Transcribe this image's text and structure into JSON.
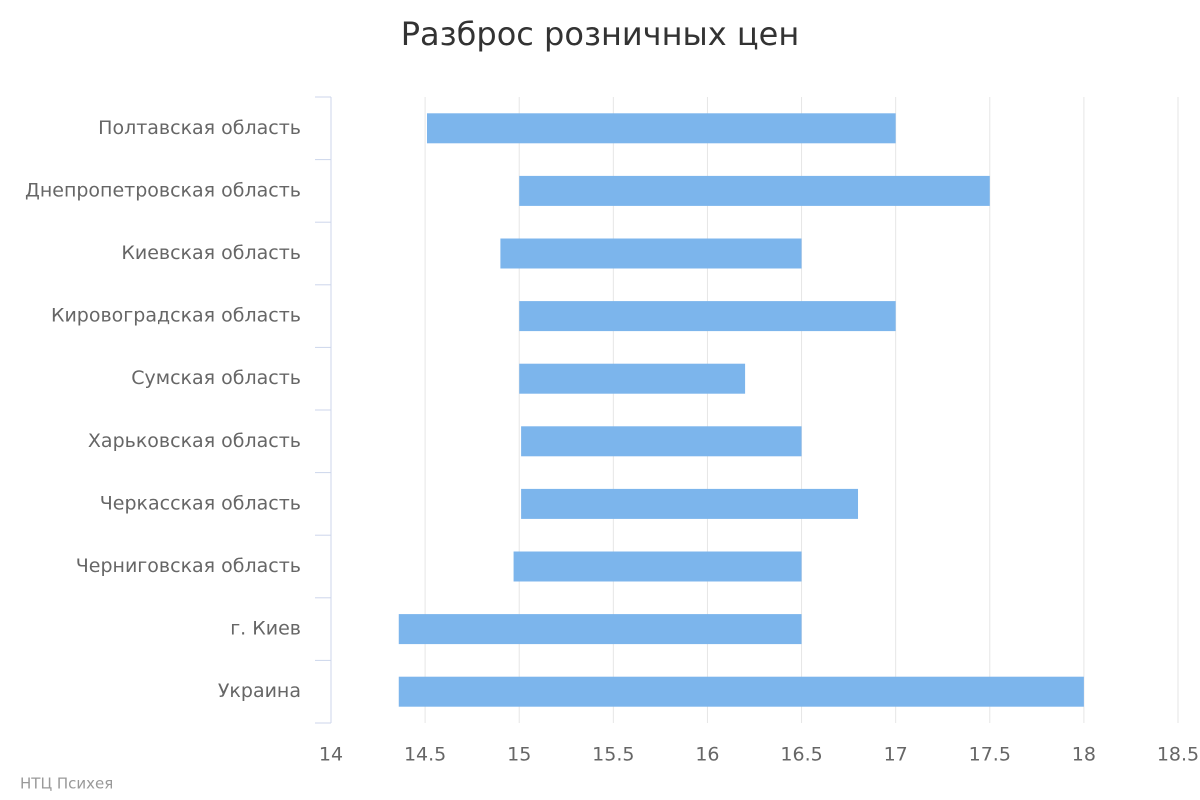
{
  "chart_data": {
    "type": "range-bar",
    "title": "Разброс розничных цен",
    "categories": [
      "Полтавская область",
      "Днепропетровская область",
      "Киевская область",
      "Кировоградская область",
      "Сумская область",
      "Харьковская область",
      "Черкасская область",
      "Черниговская область",
      "г. Киев",
      "Украина"
    ],
    "low": [
      14.51,
      15,
      14.9,
      15,
      15,
      15.01,
      15.01,
      14.97,
      14.36,
      14.36
    ],
    "high": [
      17,
      17.5,
      16.5,
      17,
      16.2,
      16.5,
      16.8,
      16.5,
      16.5,
      18
    ],
    "color": "#7cb5ec",
    "xlim": [
      14,
      18.5
    ],
    "xticks": [
      14,
      14.5,
      15,
      15.5,
      16,
      16.5,
      17,
      17.5,
      18,
      18.5
    ],
    "grid": true,
    "credits": "НТЦ Психея"
  }
}
